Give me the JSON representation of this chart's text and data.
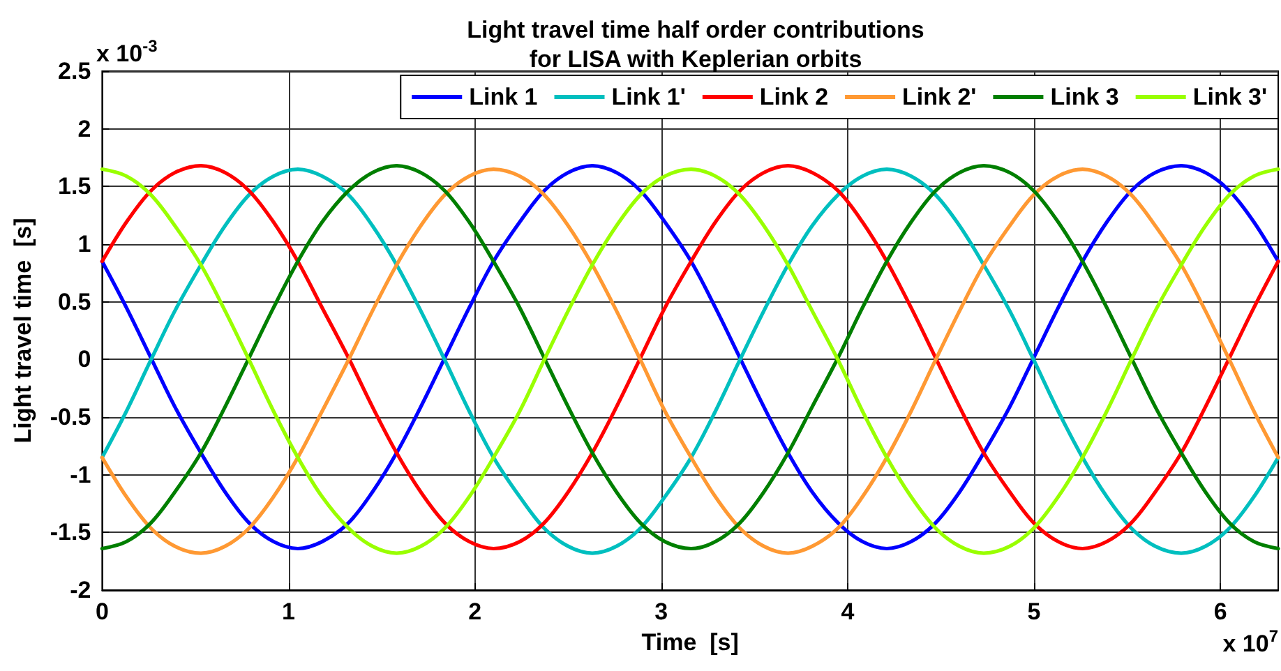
{
  "chart_data": {
    "type": "line",
    "title": "Light travel time half order contributions\nfor LISA with Keplerian orbits",
    "xlabel": "Time  [s]",
    "ylabel": "Light travel time  [s]",
    "annotations": [
      "x 10$^{-3}$",
      "x 10$^{7}$"
    ],
    "x": [
      0,
      0.13,
      0.26,
      0.39,
      0.53,
      0.66,
      0.79,
      0.92,
      1.05,
      1.18,
      1.32,
      1.45,
      1.58,
      1.71,
      1.84,
      1.97,
      2.1,
      2.24,
      2.37,
      2.5,
      2.63,
      2.76,
      2.89,
      3.02,
      3.16,
      3.29,
      3.42,
      3.55,
      3.68,
      3.81,
      3.95,
      4.08,
      4.21,
      4.34,
      4.47,
      4.6,
      4.73,
      4.87,
      5,
      5.13,
      5.26,
      5.39,
      5.52,
      5.65,
      5.79,
      5.92,
      6.05,
      6.18,
      6.31
    ],
    "series": [
      {
        "name": "Link 1",
        "color": "#0000ff",
        "values": [
          0.85,
          0.45,
          0.02,
          -0.41,
          -0.81,
          -1.15,
          -1.42,
          -1.58,
          -1.64,
          -1.58,
          -1.42,
          -1.15,
          -0.81,
          -0.41,
          0.02,
          0.45,
          0.85,
          1.19,
          1.46,
          1.62,
          1.68,
          1.62,
          1.46,
          1.19,
          0.85,
          0.45,
          0.02,
          -0.41,
          -0.81,
          -1.15,
          -1.42,
          -1.58,
          -1.64,
          -1.58,
          -1.42,
          -1.15,
          -0.81,
          -0.41,
          0.02,
          0.45,
          0.85,
          1.19,
          1.46,
          1.62,
          1.68,
          1.62,
          1.46,
          1.19,
          0.85
        ]
      },
      {
        "name": "Link 1'",
        "color": "#00bfbf",
        "values": [
          -0.85,
          -0.45,
          -0.01,
          0.42,
          0.82,
          1.16,
          1.43,
          1.59,
          1.65,
          1.59,
          1.43,
          1.16,
          0.82,
          0.42,
          -0.01,
          -0.45,
          -0.85,
          -1.19,
          -1.46,
          -1.62,
          -1.68,
          -1.62,
          -1.46,
          -1.19,
          -0.85,
          -0.45,
          -0.01,
          0.42,
          0.82,
          1.16,
          1.43,
          1.59,
          1.65,
          1.59,
          1.43,
          1.16,
          0.82,
          0.42,
          -0.01,
          -0.45,
          -0.85,
          -1.19,
          -1.46,
          -1.62,
          -1.68,
          -1.62,
          -1.46,
          -1.19,
          -0.85
        ]
      },
      {
        "name": "Link 2",
        "color": "#ff0000",
        "values": [
          0.85,
          1.19,
          1.46,
          1.62,
          1.68,
          1.62,
          1.46,
          1.19,
          0.85,
          0.45,
          0.02,
          -0.41,
          -0.81,
          -1.15,
          -1.42,
          -1.58,
          -1.64,
          -1.58,
          -1.42,
          -1.15,
          -0.81,
          -0.41,
          0.02,
          0.45,
          0.85,
          1.19,
          1.46,
          1.62,
          1.68,
          1.62,
          1.46,
          1.19,
          0.85,
          0.45,
          0.02,
          -0.41,
          -0.81,
          -1.15,
          -1.42,
          -1.58,
          -1.64,
          -1.58,
          -1.42,
          -1.15,
          -0.81,
          -0.41,
          0.02,
          0.45,
          0.85
        ]
      },
      {
        "name": "Link 2'",
        "color": "#ff9933",
        "values": [
          -0.85,
          -1.19,
          -1.46,
          -1.62,
          -1.68,
          -1.62,
          -1.46,
          -1.19,
          -0.85,
          -0.45,
          -0.01,
          0.42,
          0.82,
          1.16,
          1.43,
          1.59,
          1.65,
          1.59,
          1.43,
          1.16,
          0.82,
          0.42,
          -0.01,
          -0.45,
          -0.85,
          -1.19,
          -1.46,
          -1.62,
          -1.68,
          -1.62,
          -1.46,
          -1.19,
          -0.85,
          -0.45,
          -0.01,
          0.42,
          0.82,
          1.16,
          1.43,
          1.59,
          1.65,
          1.59,
          1.43,
          1.16,
          0.82,
          0.42,
          -0.01,
          -0.45,
          -0.85
        ]
      },
      {
        "name": "Link 3",
        "color": "#007f00",
        "values": [
          -1.64,
          -1.58,
          -1.42,
          -1.15,
          -0.81,
          -0.41,
          0.02,
          0.45,
          0.85,
          1.19,
          1.46,
          1.62,
          1.68,
          1.62,
          1.46,
          1.19,
          0.85,
          0.45,
          0.02,
          -0.41,
          -0.81,
          -1.15,
          -1.42,
          -1.58,
          -1.64,
          -1.58,
          -1.42,
          -1.15,
          -0.81,
          -0.41,
          0.02,
          0.45,
          0.85,
          1.19,
          1.46,
          1.62,
          1.68,
          1.62,
          1.46,
          1.19,
          0.85,
          0.45,
          0.02,
          -0.41,
          -0.81,
          -1.15,
          -1.42,
          -1.58,
          -1.64
        ]
      },
      {
        "name": "Link 3'",
        "color": "#99ff00",
        "values": [
          1.65,
          1.59,
          1.43,
          1.16,
          0.82,
          0.42,
          -0.01,
          -0.45,
          -0.85,
          -1.19,
          -1.46,
          -1.62,
          -1.68,
          -1.62,
          -1.46,
          -1.19,
          -0.85,
          -0.45,
          -0.01,
          0.42,
          0.82,
          1.16,
          1.43,
          1.59,
          1.65,
          1.59,
          1.43,
          1.16,
          0.82,
          0.42,
          -0.01,
          -0.45,
          -0.85,
          -1.19,
          -1.46,
          -1.62,
          -1.68,
          -1.62,
          -1.46,
          -1.19,
          -0.85,
          -0.45,
          -0.01,
          0.42,
          0.82,
          1.16,
          1.43,
          1.59,
          1.65
        ]
      }
    ],
    "xlim": [
      0,
      6.31
    ],
    "ylim": [
      -2,
      2.5
    ],
    "xticks": [
      0,
      1,
      2,
      3,
      4,
      5,
      6
    ],
    "yticks": [
      -2,
      -1.5,
      -1,
      -0.5,
      0,
      0.5,
      1,
      1.5,
      2,
      2.5
    ],
    "grid": true,
    "legend": "top right",
    "marker": "none",
    "line_style": "solid"
  }
}
